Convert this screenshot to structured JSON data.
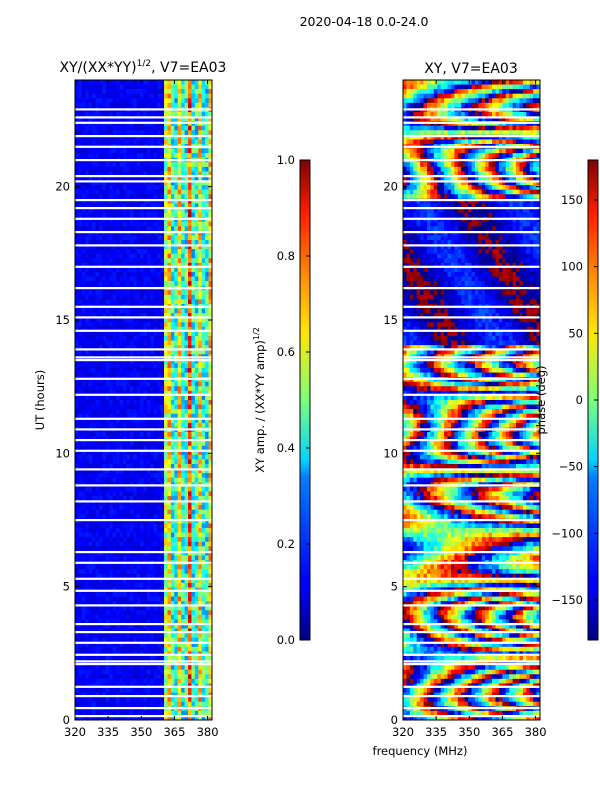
{
  "figure_title": "2020-04-18 0.0-24.0",
  "chart_data": [
    {
      "type": "heatmap",
      "title": "XY/(XX*YY)^1/2, V7=EA03",
      "title_main": "XY/(XX*YY)",
      "title_sup": "1/2",
      "title_tail": ", V7=EA03",
      "ylabel": "UT (hours)",
      "xlim": [
        320,
        382
      ],
      "ylim": [
        0,
        24
      ],
      "xticks": [
        320,
        335,
        350,
        365,
        380
      ],
      "yticks": [
        0,
        5,
        10,
        15,
        20
      ],
      "colormap": "jet",
      "colorbar": {
        "label_main": "XY amp. / (XX*YY amp)",
        "label_sup": "1/2",
        "range": [
          0.0,
          1.0
        ],
        "ticks": [
          "0.0",
          "0.2",
          "0.4",
          "0.6",
          "0.8",
          "1.0"
        ]
      }
    },
    {
      "type": "heatmap",
      "title": "XY, V7=EA03",
      "xlabel": "frequency (MHz)",
      "xlim": [
        320,
        382
      ],
      "ylim": [
        0,
        24
      ],
      "xticks": [
        320,
        335,
        350,
        365,
        380
      ],
      "yticks": [
        0,
        5,
        10,
        15,
        20
      ],
      "colormap": "jet",
      "colorbar": {
        "label": "phase (deg)",
        "range": [
          -180,
          180
        ],
        "ticks": [
          "−150",
          "−100",
          "−50",
          "0",
          "50",
          "100",
          "150"
        ]
      }
    }
  ]
}
